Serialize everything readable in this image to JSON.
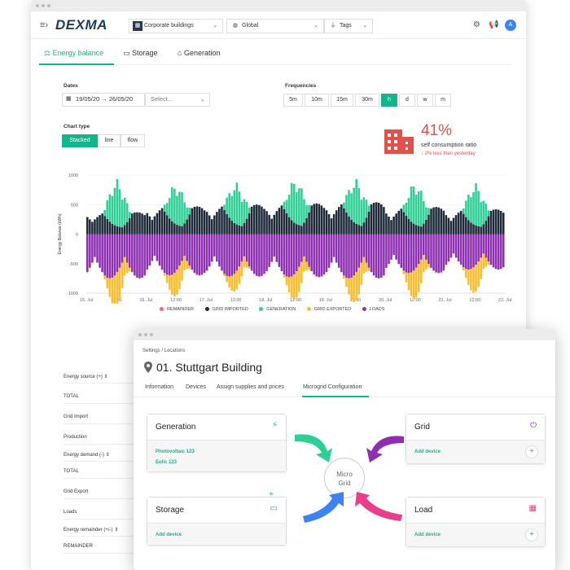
{
  "header": {
    "logo": "DEXMA",
    "site_select": "Corporate buildings",
    "scope_select": "Global",
    "tags_select": "Tags",
    "avatar_initial": "A"
  },
  "tabs": [
    {
      "label": "Energy balance"
    },
    {
      "label": "Storage"
    },
    {
      "label": "Generation"
    }
  ],
  "filters": {
    "dates_label": "Dates",
    "date_from": "19/05/20",
    "date_to": "26/05/20",
    "compare_placeholder": "Select...",
    "frequencies_label": "Frequencies",
    "frequencies": [
      "5m",
      "10m",
      "15m",
      "30m",
      "h",
      "d",
      "w",
      "m"
    ],
    "active_frequency": "h",
    "chart_type_label": "Chart type",
    "chart_types": [
      "Stacked",
      "line",
      "flow"
    ],
    "active_chart_type": "Stacked"
  },
  "kpi": {
    "value": "41%",
    "label": "self consumption ratio",
    "trend": "↓ 2% less than yesterday"
  },
  "colors": {
    "accent": "#13b58c",
    "remainder": "#f06a6a",
    "grid_imported": "#1e2a3a",
    "generation": "#2ecf95",
    "grid_exported": "#fbbd2e",
    "loads": "#8e2fb2",
    "kpi": "#e0504c"
  },
  "chart_data": {
    "type": "bar",
    "ylabel": "Energy Balance (kWh)",
    "ylim": [
      -1000,
      1000
    ],
    "yticks": [
      "1000",
      "500",
      "0",
      "-500",
      "-1000"
    ],
    "xticks": [
      "15. Jul",
      "12:00",
      "16. Jul",
      "12:00",
      "17. Jul",
      "12:00",
      "18. Jul",
      "12:00",
      "19. Jul",
      "12:00",
      "20. Jul",
      "12:00",
      "21. Jul",
      "12:00",
      "22. Jul"
    ],
    "legend": [
      "REMAINDER",
      "GRID IMPORTED",
      "GENERATION",
      "GRID EXPORTED",
      "LOADS"
    ],
    "days": 7,
    "hours_per_day": 24,
    "description_series": [
      {
        "name": "GENERATION",
        "daily_peak": [
          800,
          700,
          710,
          770,
          760,
          730,
          720
        ]
      },
      {
        "name": "GRID IMPORTED",
        "daily_peak": [
          250,
          350,
          380,
          400,
          420,
          340,
          300
        ]
      },
      {
        "name": "LOADS",
        "daily_peak": [
          -450,
          -400,
          -420,
          -430,
          -450,
          -360,
          -300
        ]
      },
      {
        "name": "GRID EXPORTED",
        "daily_peak": [
          -780,
          -600,
          -450,
          -640,
          -680,
          -720,
          -650
        ]
      }
    ]
  },
  "summary": {
    "rows": [
      {
        "label": "Energy source (+)",
        "sortable": true
      },
      {
        "label": "TOTAL"
      },
      {
        "label": "Grid Import"
      },
      {
        "label": "Production"
      },
      {
        "label": "Energy demand (-)",
        "sortable": true
      },
      {
        "label": "TOTAL"
      },
      {
        "label": "Grid Export"
      },
      {
        "label": "Loads"
      },
      {
        "label": "Energy remainder (+/-)",
        "sortable": true
      },
      {
        "label": "REMAINDER"
      }
    ]
  },
  "settings": {
    "breadcrumb": "Settings  /  Locations",
    "building_title": "01. Stuttgart Building",
    "tabs": [
      "Information",
      "Devices",
      "Assign supplies and prices",
      "Microgrid Configuration"
    ],
    "active_tab": "Microgrid Configuration",
    "center_label_1": "Micro",
    "center_label_2": "Grid",
    "cards": {
      "generation": {
        "title": "Generation",
        "items": [
          "Photovoltaic 123",
          "Eolic 123"
        ]
      },
      "grid": {
        "title": "Grid",
        "add": "Add device"
      },
      "storage": {
        "title": "Storage",
        "add": "Add device"
      },
      "load": {
        "title": "Load",
        "add": "Add device"
      }
    }
  }
}
